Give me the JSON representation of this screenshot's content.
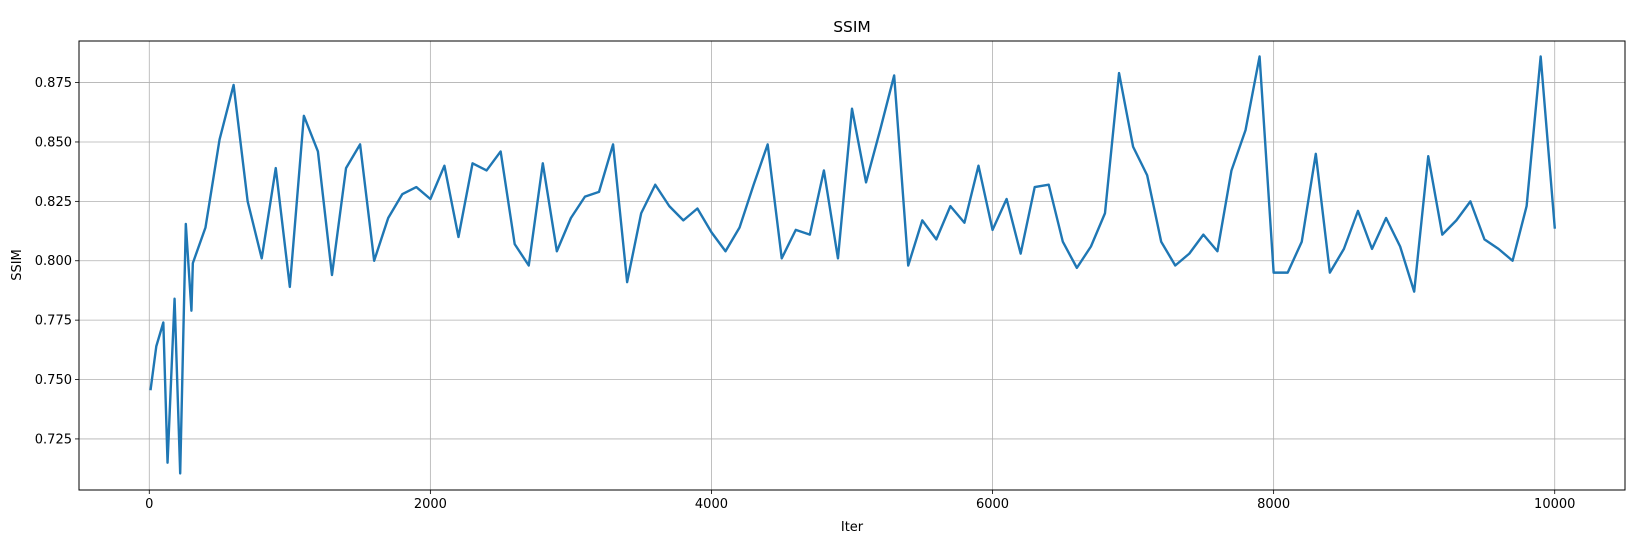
{
  "chart_data": {
    "type": "line",
    "title": "SSIM",
    "xlabel": "Iter",
    "ylabel": "SSIM",
    "xlim": [
      -500,
      10500
    ],
    "ylim": [
      0.7035,
      0.8925
    ],
    "xticks": [
      0,
      2000,
      4000,
      6000,
      8000,
      10000
    ],
    "xtick_labels": [
      "0",
      "2000",
      "4000",
      "6000",
      "8000",
      "10000"
    ],
    "yticks": [
      0.725,
      0.75,
      0.775,
      0.8,
      0.825,
      0.85,
      0.875
    ],
    "ytick_labels": [
      "0.725",
      "0.750",
      "0.775",
      "0.800",
      "0.825",
      "0.850",
      "0.875"
    ],
    "grid": true,
    "line_color": "#1f77b4",
    "series": [
      {
        "x": [
          10,
          50,
          100,
          130,
          180,
          220,
          260,
          300,
          310,
          400,
          500,
          600,
          700,
          800,
          900,
          1000,
          1100,
          1200,
          1300,
          1400,
          1500,
          1600,
          1700,
          1800,
          1900,
          2000,
          2100,
          2200,
          2300,
          2400,
          2500,
          2600,
          2700,
          2800,
          2900,
          3000,
          3100,
          3200,
          3300,
          3400,
          3500,
          3600,
          3700,
          3800,
          3900,
          4000,
          4100,
          4200,
          4300,
          4400,
          4500,
          4600,
          4700,
          4800,
          4900,
          5000,
          5100,
          5200,
          5300,
          5400,
          5500,
          5600,
          5700,
          5800,
          5900,
          6000,
          6100,
          6200,
          6300,
          6400,
          6500,
          6600,
          6700,
          6800,
          6900,
          7000,
          7100,
          7200,
          7300,
          7400,
          7500,
          7600,
          7700,
          7800,
          7900,
          8000,
          8100,
          8200,
          8300,
          8400,
          8500,
          8600,
          8700,
          8800,
          8900,
          9000,
          9100,
          9200,
          9300,
          9400,
          9500,
          9600,
          9700,
          9800,
          9900,
          10000
        ],
        "y": [
          0.746,
          0.764,
          0.774,
          0.715,
          0.784,
          0.7105,
          0.8155,
          0.779,
          0.799,
          0.814,
          0.851,
          0.874,
          0.825,
          0.801,
          0.839,
          0.789,
          0.861,
          0.846,
          0.794,
          0.839,
          0.849,
          0.8,
          0.818,
          0.828,
          0.831,
          0.826,
          0.84,
          0.81,
          0.841,
          0.838,
          0.846,
          0.807,
          0.798,
          0.841,
          0.804,
          0.818,
          0.827,
          0.829,
          0.849,
          0.791,
          0.82,
          0.832,
          0.823,
          0.817,
          0.822,
          0.812,
          0.804,
          0.814,
          0.832,
          0.849,
          0.801,
          0.813,
          0.811,
          0.838,
          0.801,
          0.864,
          0.833,
          0.855,
          0.878,
          0.798,
          0.817,
          0.809,
          0.823,
          0.816,
          0.84,
          0.813,
          0.826,
          0.803,
          0.831,
          0.832,
          0.808,
          0.797,
          0.806,
          0.82,
          0.879,
          0.848,
          0.836,
          0.808,
          0.798,
          0.803,
          0.811,
          0.804,
          0.838,
          0.855,
          0.886,
          0.795,
          0.795,
          0.808,
          0.845,
          0.795,
          0.805,
          0.821,
          0.805,
          0.818,
          0.806,
          0.787,
          0.844,
          0.811,
          0.817,
          0.825,
          0.809,
          0.805,
          0.8,
          0.823,
          0.886,
          0.814
        ]
      }
    ]
  }
}
